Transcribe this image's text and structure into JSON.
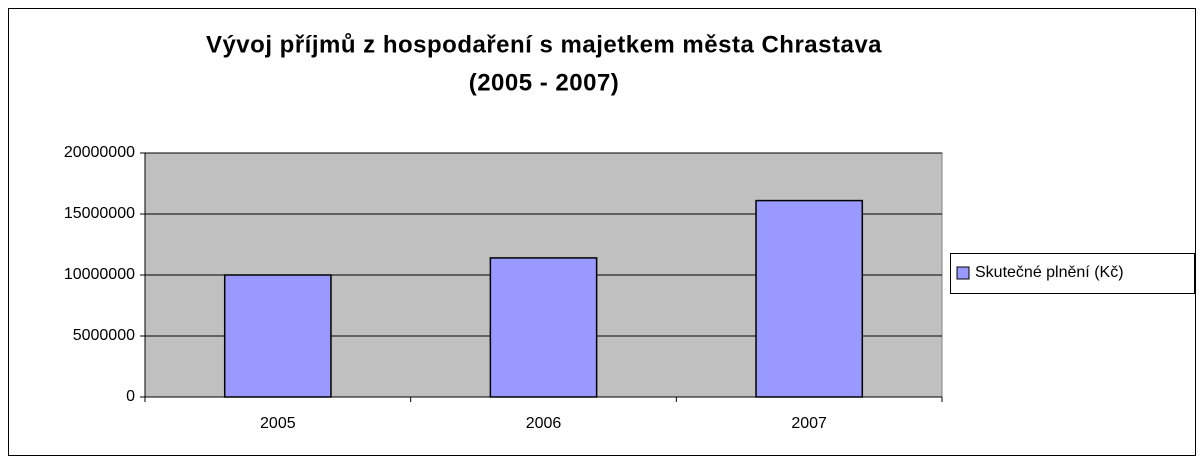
{
  "chart_data": {
    "type": "bar",
    "title": "Vývoj příjmů z hospodaření s majetkem města Chrastava",
    "subtitle": "(2005 - 2007)",
    "categories": [
      "2005",
      "2006",
      "2007"
    ],
    "series": [
      {
        "name": "Skutečné plnění (Kč)",
        "color": "#9999ff",
        "values": [
          10000000,
          11400000,
          16100000
        ]
      }
    ],
    "ylim": [
      0,
      20000000
    ],
    "yticks": [
      0,
      5000000,
      10000000,
      15000000,
      20000000
    ],
    "grid": true,
    "legend": "right"
  }
}
